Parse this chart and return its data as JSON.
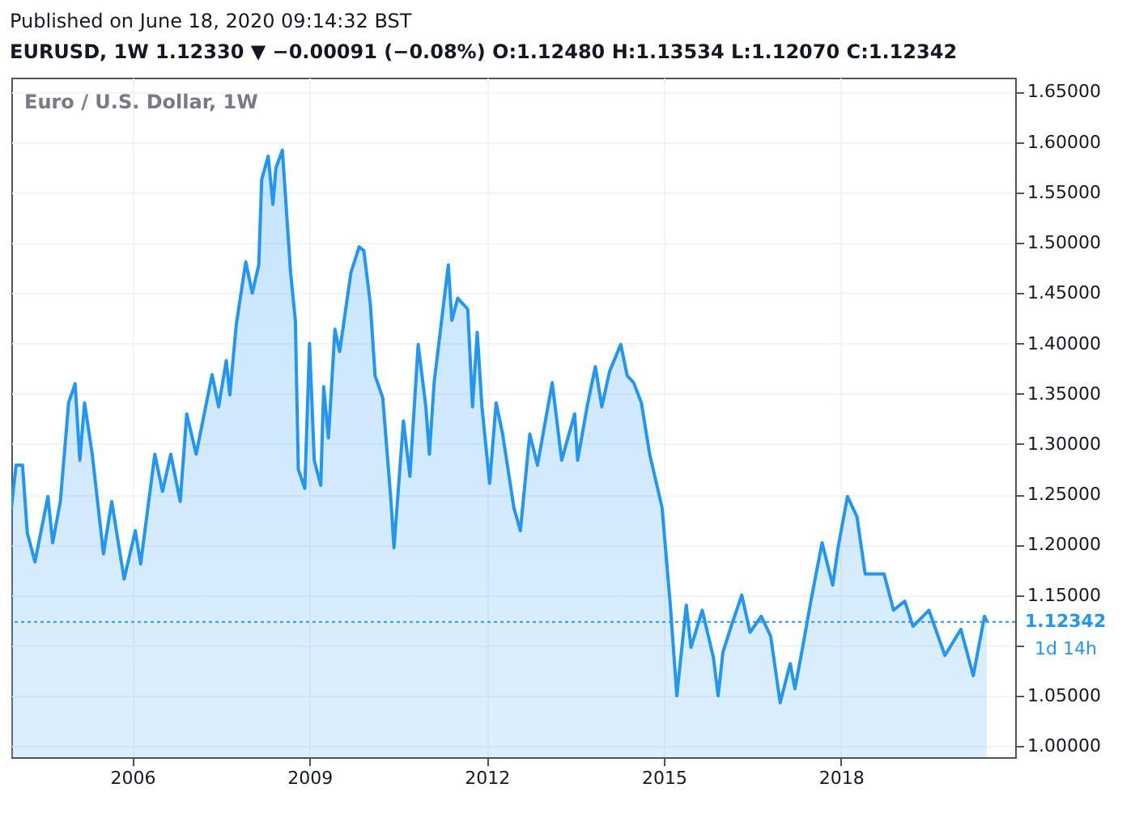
{
  "chart_data": {
    "type": "area",
    "title": "Euro / U.S. Dollar, 1W",
    "annotations": [
      "Published on June 18, 2020 09:14:32 BST",
      "EURUSD, 1W  1.12330 ▼ −0.00091 (−0.08%)  O:1.12480  H:1.13534  L:1.12070  C:1.12342",
      "1d 14h"
    ],
    "x": [
      2003.95,
      2004.03,
      2004.14,
      2004.22,
      2004.35,
      2004.57,
      2004.65,
      2004.78,
      2004.92,
      2005.03,
      2005.11,
      2005.19,
      2005.32,
      2005.51,
      2005.65,
      2005.86,
      2006.05,
      2006.14,
      2006.38,
      2006.51,
      2006.65,
      2006.81,
      2006.92,
      2007.08,
      2007.35,
      2007.46,
      2007.59,
      2007.65,
      2007.76,
      2007.92,
      2008.03,
      2008.14,
      2008.19,
      2008.3,
      2008.38,
      2008.43,
      2008.54,
      2008.68,
      2008.76,
      2008.81,
      2008.92,
      2009.0,
      2009.08,
      2009.19,
      2009.24,
      2009.32,
      2009.43,
      2009.51,
      2009.7,
      2009.84,
      2009.92,
      2010.03,
      2010.11,
      2010.24,
      2010.38,
      2010.43,
      2010.59,
      2010.7,
      2010.84,
      2010.97,
      2011.03,
      2011.11,
      2011.35,
      2011.41,
      2011.51,
      2011.68,
      2011.76,
      2011.84,
      2011.92,
      2012.05,
      2012.16,
      2012.27,
      2012.46,
      2012.57,
      2012.73,
      2012.86,
      2013.11,
      2013.27,
      2013.49,
      2013.54,
      2013.7,
      2013.84,
      2013.95,
      2014.08,
      2014.27,
      2014.38,
      2014.49,
      2014.62,
      2014.76,
      2014.97,
      2015.11,
      2015.22,
      2015.38,
      2015.46,
      2015.65,
      2015.84,
      2015.92,
      2016.0,
      2016.14,
      2016.32,
      2016.46,
      2016.65,
      2016.81,
      2016.97,
      2017.14,
      2017.22,
      2017.35,
      2017.49,
      2017.68,
      2017.86,
      2017.95,
      2018.11,
      2018.27,
      2018.41,
      2018.73,
      2018.89,
      2019.08,
      2019.22,
      2019.49,
      2019.76,
      2020.03,
      2020.24,
      2020.43,
      2020.47
    ],
    "series": [
      {
        "color": "#2196f3",
        "values": [
          1.236,
          1.279,
          1.279,
          1.212,
          1.183,
          1.248,
          1.202,
          1.243,
          1.341,
          1.36,
          1.284,
          1.341,
          1.29,
          1.191,
          1.243,
          1.166,
          1.214,
          1.181,
          1.29,
          1.253,
          1.29,
          1.243,
          1.33,
          1.29,
          1.369,
          1.337,
          1.383,
          1.349,
          1.419,
          1.481,
          1.45,
          1.478,
          1.563,
          1.586,
          1.538,
          1.574,
          1.592,
          1.47,
          1.423,
          1.275,
          1.256,
          1.4,
          1.284,
          1.259,
          1.357,
          1.306,
          1.414,
          1.392,
          1.47,
          1.496,
          1.492,
          1.439,
          1.368,
          1.346,
          1.243,
          1.197,
          1.323,
          1.268,
          1.399,
          1.337,
          1.29,
          1.361,
          1.478,
          1.423,
          1.445,
          1.434,
          1.337,
          1.411,
          1.337,
          1.261,
          1.341,
          1.31,
          1.237,
          1.214,
          1.31,
          1.279,
          1.361,
          1.284,
          1.33,
          1.284,
          1.337,
          1.377,
          1.337,
          1.372,
          1.399,
          1.368,
          1.361,
          1.341,
          1.29,
          1.237,
          1.14,
          1.05,
          1.14,
          1.098,
          1.135,
          1.088,
          1.05,
          1.093,
          1.119,
          1.15,
          1.113,
          1.129,
          1.109,
          1.043,
          1.082,
          1.057,
          1.098,
          1.144,
          1.202,
          1.16,
          1.197,
          1.248,
          1.228,
          1.171,
          1.171,
          1.135,
          1.144,
          1.119,
          1.135,
          1.09,
          1.116,
          1.07,
          1.129,
          1.124
        ]
      }
    ],
    "xlim": [
      2003.95,
      2020.95
    ],
    "xticks": [
      2006,
      2009,
      2012,
      2015,
      2018
    ],
    "ylim": [
      0.989,
      1.664
    ],
    "yticks": [
      {
        "value": 1.0,
        "label": "1.00000"
      },
      {
        "value": 1.05,
        "label": "1.05000"
      },
      {
        "value": 1.1,
        "label": null
      },
      {
        "value": 1.15,
        "label": "1.15000"
      },
      {
        "value": 1.2,
        "label": "1.20000"
      },
      {
        "value": 1.25,
        "label": "1.25000"
      },
      {
        "value": 1.3,
        "label": "1.30000"
      },
      {
        "value": 1.35,
        "label": "1.35000"
      },
      {
        "value": 1.4,
        "label": "1.40000"
      },
      {
        "value": 1.45,
        "label": "1.45000"
      },
      {
        "value": 1.5,
        "label": "1.50000"
      },
      {
        "value": 1.55,
        "label": "1.55000"
      },
      {
        "value": 1.6,
        "label": "1.60000"
      },
      {
        "value": 1.65,
        "label": "1.65000"
      }
    ],
    "ref_lines": [
      {
        "axis": "y",
        "value": 1.12342,
        "label": "1.12342",
        "color": "#2196f3",
        "line_style": "dotted"
      }
    ],
    "grid": true
  }
}
